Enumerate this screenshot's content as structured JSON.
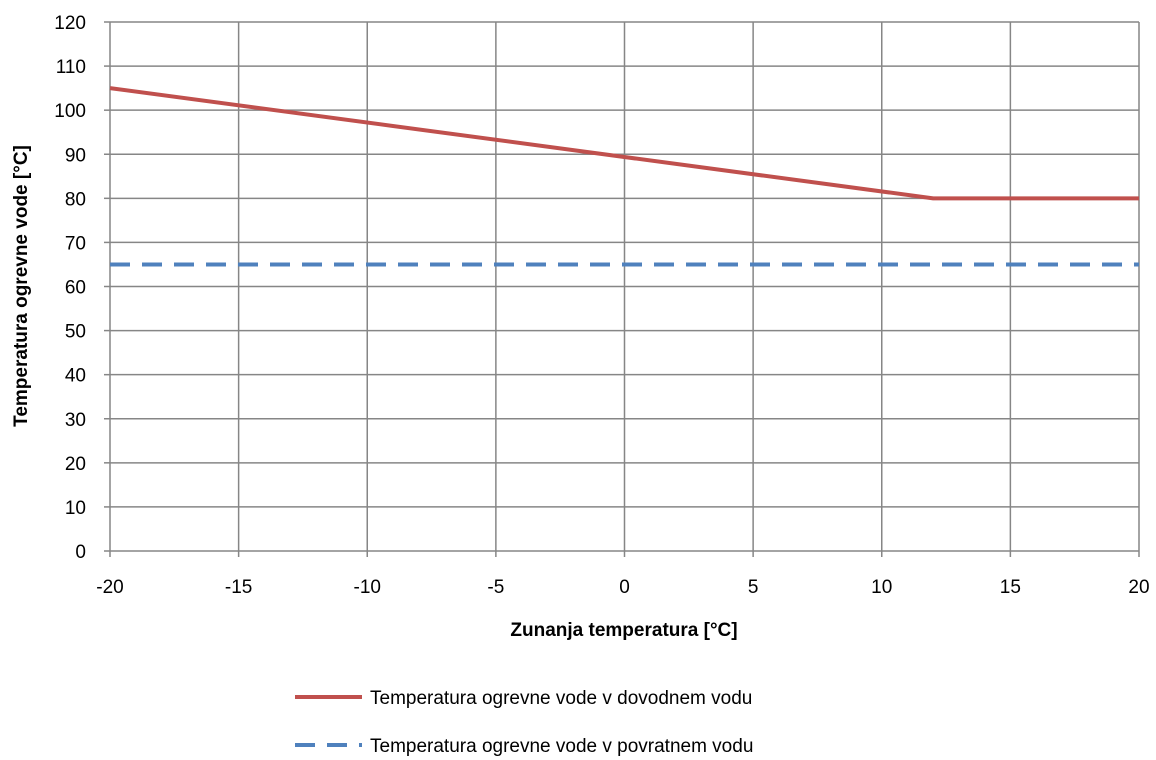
{
  "chart_data": {
    "type": "line",
    "xlabel": "Zunanja temperatura [°C]",
    "ylabel": "Temperatura ogrevne vode [°C]",
    "xlim": [
      -20,
      20
    ],
    "ylim": [
      0,
      120
    ],
    "x_ticks": [
      "-20",
      "-15",
      "-10",
      "-5",
      "0",
      "5",
      "10",
      "15",
      "20"
    ],
    "y_ticks": [
      "0",
      "10",
      "20",
      "30",
      "40",
      "50",
      "60",
      "70",
      "80",
      "90",
      "100",
      "110",
      "120"
    ],
    "grid": true,
    "legend_position": "bottom",
    "series": [
      {
        "name": "Temperatura ogrevne vode v dovodnem vodu",
        "color": "#c0504d",
        "style": "solid",
        "points": [
          [
            -20,
            105
          ],
          [
            12,
            80
          ],
          [
            20,
            80
          ]
        ]
      },
      {
        "name": "Temperatura ogrevne vode v povratnem vodu",
        "color": "#4f81bd",
        "style": "dashed",
        "points": [
          [
            -20,
            65
          ],
          [
            20,
            65
          ]
        ]
      }
    ]
  }
}
